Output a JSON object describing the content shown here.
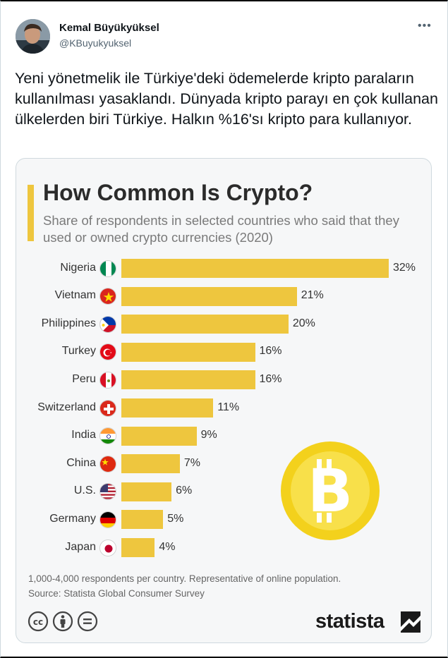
{
  "tweet": {
    "user_name": "Kemal Büyükyüksel",
    "user_handle": "@KBuyukyuksel",
    "more_icon": "more-icon",
    "text": "Yeni yönetmelik ile Türkiye'deki ödemelerde kripto paraların kullanılması yasaklandı. Dünyada kripto parayı en çok kullanan ülkelerden biri Türkiye. Halkın %16'sı kripto para kullanıyor."
  },
  "infographic": {
    "accent_color": "#eec63e",
    "footnote_line1": "1,000-4,000 respondents per country. Representative of online population.",
    "footnote_line2": "Source: Statista Global Consumer Survey",
    "brand": "statista",
    "license_icons": [
      "cc-icon",
      "by-icon",
      "nd-icon"
    ],
    "illustration": "bitcoin-coin-icon"
  },
  "chart_data": {
    "type": "bar",
    "orientation": "horizontal",
    "title": "How Common Is Crypto?",
    "subtitle": "Share of respondents in selected countries who said that they used or owned crypto currencies (2020)",
    "categories": [
      "Nigeria",
      "Vietnam",
      "Philippines",
      "Turkey",
      "Peru",
      "Switzerland",
      "India",
      "China",
      "U.S.",
      "Germany",
      "Japan"
    ],
    "values": [
      32,
      21,
      20,
      16,
      16,
      11,
      9,
      7,
      6,
      5,
      4
    ],
    "value_labels": [
      "32%",
      "21%",
      "20%",
      "16%",
      "16%",
      "11%",
      "9%",
      "7%",
      "6%",
      "5%",
      "4%"
    ],
    "unit": "%",
    "xlim": [
      0,
      32
    ],
    "grid": false,
    "legend": "none",
    "flags": [
      "nigeria-flag-icon",
      "vietnam-flag-icon",
      "philippines-flag-icon",
      "turkey-flag-icon",
      "peru-flag-icon",
      "switzerland-flag-icon",
      "india-flag-icon",
      "china-flag-icon",
      "us-flag-icon",
      "germany-flag-icon",
      "japan-flag-icon"
    ]
  }
}
